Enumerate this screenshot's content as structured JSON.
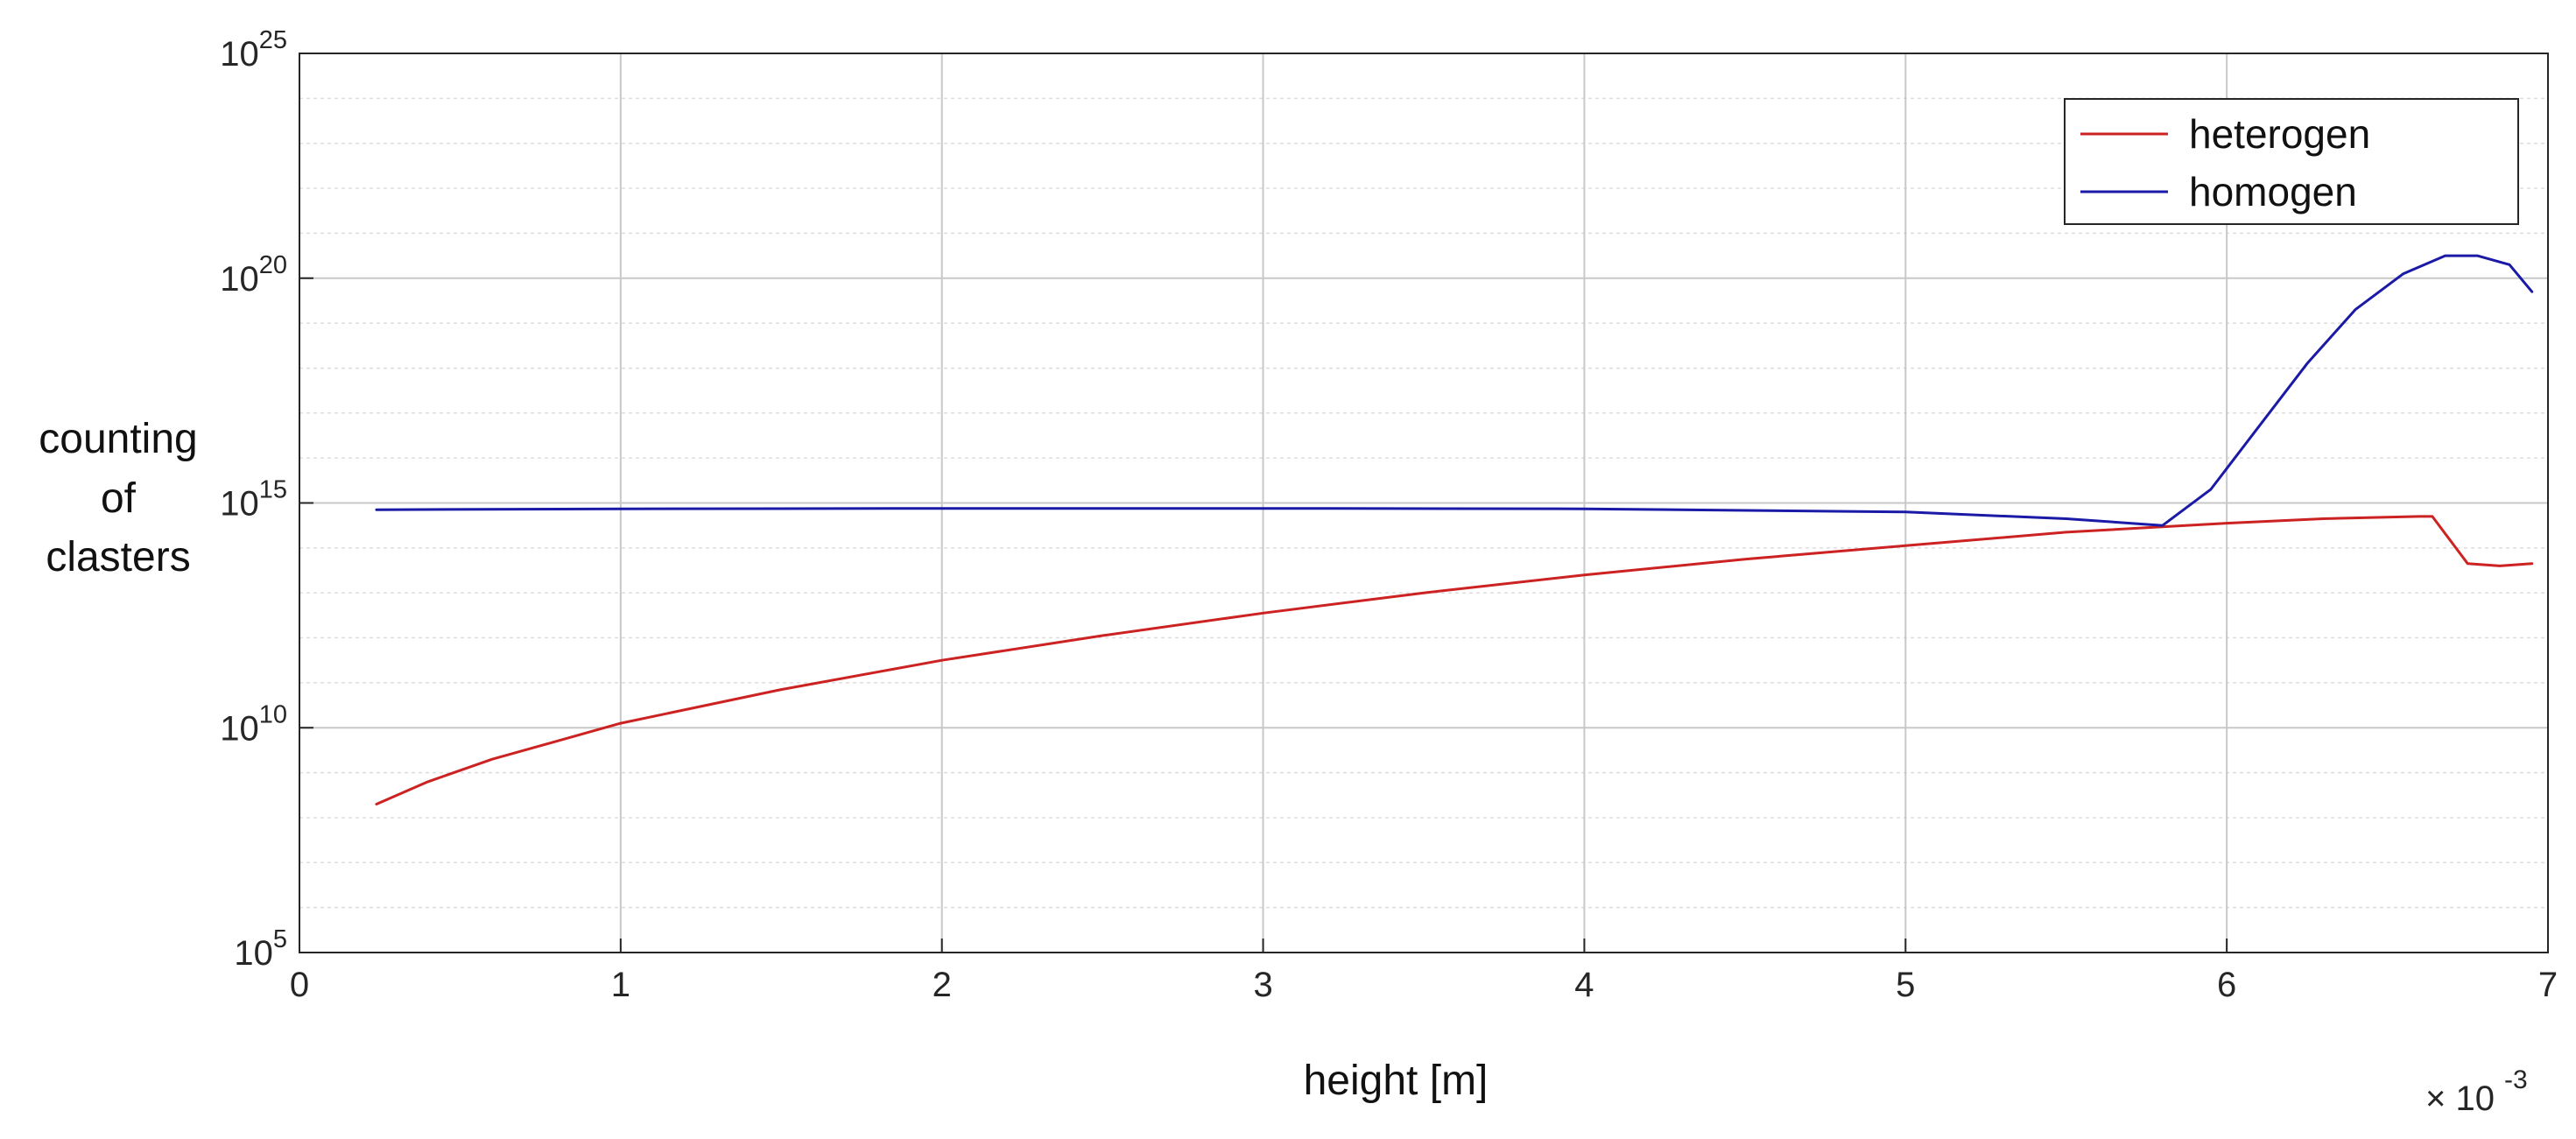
{
  "chart_data": {
    "type": "line",
    "title": "",
    "xlabel": "height  [m]",
    "ylabel_lines": [
      "counting",
      "of",
      "clasters"
    ],
    "x_multiplier_label": "× 10",
    "x_multiplier_exponent": "-3",
    "xlim": [
      0,
      7
    ],
    "x_ticks": [
      0,
      1,
      2,
      3,
      4,
      5,
      6,
      7
    ],
    "y_scale": "log",
    "ylim": [
      100000.0,
      1e+25
    ],
    "y_ticks": [
      {
        "base": "10",
        "exp": "5",
        "value": 100000.0
      },
      {
        "base": "10",
        "exp": "10",
        "value": 10000000000.0
      },
      {
        "base": "10",
        "exp": "15",
        "value": 1000000000000000.0
      },
      {
        "base": "10",
        "exp": "20",
        "value": 1e+20
      },
      {
        "base": "10",
        "exp": "25",
        "value": 1e+25
      }
    ],
    "grid": true,
    "legend_position": "top-right",
    "series": [
      {
        "name": "heterogen",
        "color": "#cc2222",
        "x": [
          0.24,
          0.4,
          0.6,
          0.8,
          1.0,
          1.5,
          2.0,
          2.5,
          3.0,
          3.5,
          4.0,
          4.5,
          5.0,
          5.5,
          6.0,
          6.3,
          6.6,
          6.64,
          6.75,
          6.85,
          6.95
        ],
        "log10_y": [
          8.3,
          8.8,
          9.3,
          9.7,
          10.1,
          10.85,
          11.5,
          12.05,
          12.55,
          13.0,
          13.4,
          13.75,
          14.05,
          14.35,
          14.55,
          14.65,
          14.7,
          14.7,
          13.65,
          13.6,
          13.65
        ]
      },
      {
        "name": "homogen",
        "color": "#1a1aa6",
        "x": [
          0.24,
          1.0,
          2.0,
          3.0,
          4.0,
          5.0,
          5.5,
          5.8,
          5.95,
          6.1,
          6.25,
          6.4,
          6.55,
          6.68,
          6.78,
          6.88,
          6.95
        ],
        "log10_y": [
          14.85,
          14.87,
          14.88,
          14.88,
          14.87,
          14.8,
          14.65,
          14.5,
          15.3,
          16.7,
          18.1,
          19.3,
          20.1,
          20.5,
          20.5,
          20.3,
          19.7
        ]
      }
    ]
  }
}
